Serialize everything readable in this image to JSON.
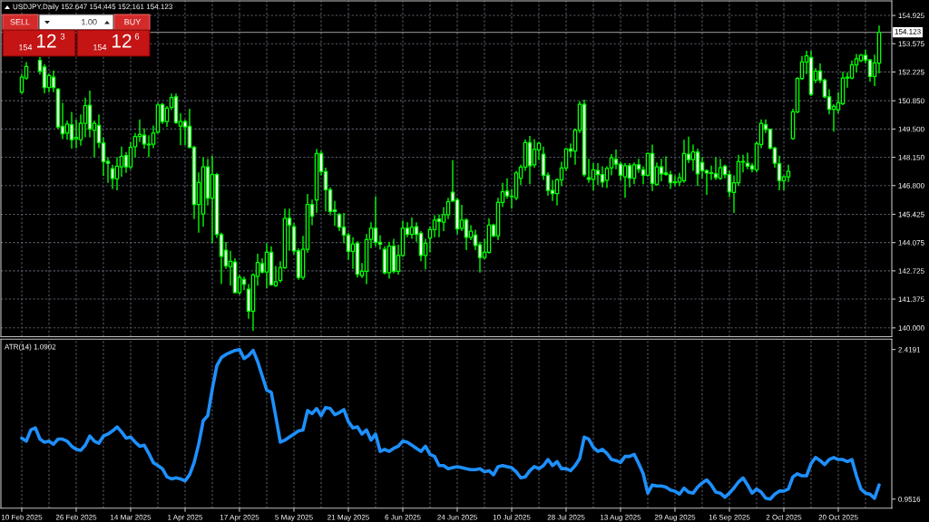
{
  "chart_data": [
    {
      "type": "candlestick",
      "title": "USDJPY,Daily 152.647 154.445 152.161 154.123",
      "categories": [
        null,
        null,
        null,
        null,
        null,
        null,
        null,
        null,
        null,
        null,
        null,
        null,
        null,
        null,
        null,
        null,
        null,
        null,
        null,
        null,
        null,
        null,
        null,
        null,
        null,
        null,
        null,
        null,
        null,
        null,
        null,
        null,
        null,
        null,
        null,
        null,
        null,
        null,
        null,
        null,
        null,
        null,
        null,
        null,
        null,
        null,
        null,
        null,
        null,
        null,
        null,
        null,
        null,
        null,
        null,
        null,
        null,
        null,
        null,
        null,
        null,
        null,
        null,
        null,
        null,
        null,
        null,
        null,
        null,
        null,
        null,
        null,
        null,
        null,
        null,
        null,
        null,
        null,
        null,
        null,
        null,
        null,
        null,
        null,
        null,
        null,
        null,
        null,
        null,
        null,
        null,
        null,
        null,
        null,
        null,
        null,
        null,
        null,
        null,
        null,
        null,
        null,
        null,
        null,
        null,
        null,
        null,
        null,
        null,
        null,
        null,
        null,
        null,
        null,
        null,
        null,
        null,
        null,
        null,
        null,
        null,
        null,
        null,
        null,
        null,
        null,
        null,
        null,
        null,
        null,
        null,
        null,
        null,
        null,
        null,
        null,
        null,
        null,
        null,
        null,
        null,
        null,
        null,
        null,
        null,
        null,
        null,
        null,
        null,
        null,
        null,
        null,
        null,
        null,
        null,
        null,
        null,
        null,
        null,
        null,
        null,
        null,
        null,
        null,
        null,
        null,
        null,
        null,
        null,
        null,
        null,
        null,
        null,
        null,
        null,
        null,
        null,
        null,
        null,
        null,
        null,
        null,
        null,
        null,
        null,
        null,
        null,
        null,
        null,
        null
      ],
      "ohlc": [
        [
          151.26,
          152.12,
          151.19,
          151.98
        ],
        [
          151.93,
          152.7,
          151.85,
          152.49
        ],
        null,
        null,
        [
          152.78,
          152.95,
          152.1,
          152.27
        ],
        [
          152.46,
          152.6,
          151.2,
          151.48
        ],
        [
          151.48,
          152.15,
          151.26,
          152.05
        ],
        [
          151.98,
          152.3,
          151.26,
          151.48
        ],
        [
          151.4,
          151.45,
          149.5,
          149.6
        ],
        [
          149.63,
          150.75,
          149.02,
          149.27
        ],
        [
          149.31,
          149.9,
          149.0,
          149.74
        ],
        [
          149.7,
          150.32,
          148.56,
          148.99
        ],
        [
          149.03,
          149.96,
          148.59,
          149.1
        ],
        [
          148.99,
          150.2,
          148.7,
          149.77
        ],
        [
          149.77,
          151.0,
          149.1,
          150.61
        ],
        [
          150.64,
          151.33,
          149.1,
          149.5
        ],
        [
          149.45,
          149.9,
          148.15,
          149.77
        ],
        [
          149.67,
          150.2,
          148.6,
          148.85
        ],
        [
          148.83,
          149.1,
          147.25,
          147.94
        ],
        [
          147.95,
          148.15,
          146.93,
          147.87
        ],
        [
          147.61,
          147.8,
          146.64,
          147.14
        ],
        [
          147.12,
          148.15,
          146.57,
          147.72
        ],
        [
          147.69,
          148.66,
          147.22,
          148.19
        ],
        [
          148.23,
          148.4,
          147.4,
          147.69
        ],
        [
          147.69,
          148.88,
          147.58,
          148.62
        ],
        [
          148.66,
          149.31,
          148.15,
          149.14
        ],
        [
          149.14,
          149.96,
          148.88,
          149.24
        ],
        [
          149.21,
          149.53,
          148.56,
          148.79
        ],
        [
          148.77,
          149.2,
          148.15,
          148.74
        ],
        [
          148.77,
          149.67,
          148.59,
          149.31
        ],
        [
          149.35,
          150.75,
          149.3,
          150.65
        ],
        [
          150.67,
          150.75,
          149.74,
          149.86
        ],
        [
          149.86,
          150.6,
          149.6,
          150.49
        ],
        [
          150.54,
          151.19,
          150.4,
          151.0
        ],
        [
          151.04,
          151.19,
          149.74,
          149.81
        ],
        [
          149.64,
          150.25,
          148.73,
          149.86
        ],
        [
          149.86,
          149.96,
          148.73,
          149.6
        ],
        [
          149.63,
          150.47,
          148.59,
          148.62
        ],
        [
          148.62,
          148.7,
          145.2,
          145.89
        ],
        [
          145.89,
          147.43,
          144.55,
          146.94
        ],
        [
          145.44,
          148.15,
          144.84,
          147.69
        ],
        [
          147.69,
          148.08,
          145.85,
          146.2
        ],
        [
          146.2,
          148.23,
          144.04,
          147.32
        ],
        [
          147.32,
          147.4,
          144.3,
          144.47
        ],
        [
          144.46,
          144.55,
          142.1,
          143.42
        ],
        [
          143.71,
          144.1,
          142.82,
          142.96
        ],
        [
          142.93,
          143.68,
          142.02,
          143.18
        ],
        [
          143.15,
          143.32,
          141.66,
          141.69
        ],
        [
          141.69,
          142.53,
          141.59,
          142.41
        ],
        [
          142.31,
          142.45,
          141.8,
          142.09
        ],
        [
          141.85,
          142.09,
          140.43,
          140.8
        ],
        [
          140.8,
          142.6,
          139.86,
          142.53
        ],
        [
          142.46,
          143.54,
          142.02,
          143.13
        ],
        [
          143.07,
          143.32,
          142.6,
          142.67
        ],
        [
          142.67,
          144.04,
          141.88,
          143.61
        ],
        [
          143.61,
          143.9,
          142.02,
          142.06
        ],
        [
          142.02,
          142.96,
          141.95,
          142.21
        ],
        [
          142.27,
          143.18,
          142.17,
          142.88
        ],
        [
          142.88,
          145.7,
          142.82,
          145.24
        ],
        [
          145.24,
          145.7,
          143.68,
          144.91
        ],
        [
          144.84,
          145.0,
          143.5,
          143.68
        ],
        [
          143.68,
          143.8,
          142.3,
          142.41
        ],
        [
          142.41,
          144.4,
          142.3,
          143.75
        ],
        [
          143.75,
          146.4,
          143.6,
          145.9
        ],
        [
          145.9,
          146.13,
          144.91,
          145.34
        ],
        [
          146.11,
          148.55,
          145.5,
          148.33
        ],
        [
          148.33,
          148.45,
          147.29,
          147.46
        ],
        [
          147.46,
          147.65,
          145.56,
          146.6
        ],
        [
          146.6,
          146.71,
          145.38,
          145.56
        ],
        [
          145.64,
          146.06,
          144.87,
          145.56
        ],
        [
          145.41,
          145.49,
          144.62,
          144.81
        ],
        [
          144.81,
          145.49,
          144.04,
          144.43
        ],
        [
          144.43,
          144.55,
          143.25,
          143.65
        ],
        [
          143.65,
          144.33,
          142.82,
          144.0
        ],
        [
          144.04,
          144.14,
          142.41,
          142.56
        ],
        [
          142.5,
          143.1,
          142.38,
          142.7
        ],
        [
          142.7,
          144.48,
          142.09,
          144.22
        ],
        [
          144.23,
          145.05,
          143.8,
          144.76
        ],
        [
          144.76,
          146.28,
          143.9,
          144.09
        ],
        [
          144.09,
          144.43,
          143.75,
          144.0
        ],
        [
          143.75,
          143.9,
          142.56,
          142.64
        ],
        [
          142.64,
          144.12,
          142.35,
          143.9
        ],
        [
          143.9,
          144.26,
          142.6,
          142.7
        ],
        [
          142.7,
          143.97,
          142.53,
          143.46
        ],
        [
          143.46,
          145.12,
          143.39,
          144.76
        ],
        [
          144.76,
          145.05,
          144.33,
          144.47
        ],
        [
          144.47,
          145.27,
          144.26,
          144.81
        ],
        [
          144.84,
          145.05,
          144.12,
          144.47
        ],
        [
          144.52,
          144.62,
          143.18,
          143.46
        ],
        [
          143.46,
          144.26,
          142.79,
          144.04
        ],
        [
          144.29,
          144.84,
          143.61,
          144.69
        ],
        [
          144.69,
          145.38,
          144.33,
          145.15
        ],
        [
          145.2,
          145.41,
          144.33,
          145.08
        ],
        [
          145.05,
          145.77,
          144.62,
          145.41
        ],
        [
          145.41,
          146.21,
          145.2,
          146.03
        ],
        [
          146.48,
          148.01,
          146.03,
          146.06
        ],
        [
          146.11,
          146.21,
          144.47,
          144.73
        ],
        [
          144.76,
          145.88,
          144.62,
          145.15
        ],
        [
          145.15,
          145.24,
          143.71,
          144.33
        ],
        [
          144.33,
          144.91,
          144.19,
          144.62
        ],
        [
          144.43,
          144.69,
          143.71,
          143.94
        ],
        [
          143.97,
          144.12,
          142.64,
          143.36
        ],
        [
          143.36,
          144.26,
          143.28,
          143.61
        ],
        [
          143.61,
          145.24,
          143.54,
          144.91
        ],
        [
          144.91,
          144.98,
          144.33,
          144.4
        ],
        [
          144.4,
          146.21,
          144.19,
          145.99
        ],
        [
          145.99,
          146.93,
          145.77,
          146.5
        ],
        [
          146.53,
          147.15,
          146.17,
          146.31
        ],
        [
          146.28,
          146.64,
          145.7,
          146.27
        ],
        [
          146.21,
          147.5,
          146.1,
          147.4
        ],
        [
          147.15,
          147.79,
          146.82,
          147.68
        ],
        [
          147.68,
          149.0,
          147.5,
          148.85
        ],
        [
          148.85,
          149.17,
          146.86,
          147.75
        ],
        [
          147.79,
          149.02,
          147.65,
          148.52
        ],
        [
          148.5,
          148.88,
          148.01,
          148.82
        ],
        [
          148.3,
          148.66,
          147.07,
          147.29
        ],
        [
          147.29,
          147.43,
          146.31,
          146.57
        ],
        [
          146.57,
          147.07,
          146.06,
          146.42
        ],
        [
          146.42,
          147.15,
          145.85,
          147.07
        ],
        [
          147.07,
          147.94,
          146.78,
          147.64
        ],
        [
          147.64,
          148.59,
          147.5,
          148.55
        ],
        [
          148.55,
          148.81,
          148.15,
          148.45
        ],
        [
          148.45,
          149.53,
          147.79,
          149.45
        ],
        [
          149.45,
          150.83,
          149.31,
          150.68
        ],
        [
          150.68,
          150.9,
          147.22,
          147.32
        ],
        [
          147.17,
          148.08,
          146.93,
          147.1
        ],
        [
          147.1,
          147.87,
          146.57,
          147.55
        ],
        [
          147.52,
          147.87,
          146.83,
          147.32
        ],
        [
          147.32,
          147.72,
          146.71,
          146.97
        ],
        [
          147.05,
          147.72,
          146.68,
          147.62
        ],
        [
          147.65,
          148.3,
          147.29,
          148.13
        ],
        [
          148.05,
          148.52,
          147.58,
          147.82
        ],
        [
          147.82,
          147.94,
          147.03,
          147.29
        ],
        [
          147.22,
          147.87,
          146.21,
          147.75
        ],
        [
          147.75,
          147.87,
          146.71,
          147.15
        ],
        [
          147.15,
          147.9,
          146.86,
          147.79
        ],
        [
          147.79,
          148.08,
          147.4,
          147.58
        ],
        [
          147.55,
          147.72,
          146.86,
          147.29
        ],
        [
          147.29,
          148.37,
          147.22,
          148.33
        ],
        [
          148.33,
          148.76,
          146.54,
          146.9
        ],
        [
          146.86,
          147.9,
          146.78,
          147.69
        ],
        [
          147.69,
          148.08,
          147.0,
          147.36
        ],
        [
          147.4,
          148.19,
          147.26,
          147.33
        ],
        [
          147.32,
          147.5,
          146.64,
          146.93
        ],
        [
          146.93,
          147.29,
          146.78,
          146.98
        ],
        [
          146.97,
          147.4,
          146.78,
          147.17
        ],
        [
          147.03,
          148.99,
          146.93,
          148.33
        ],
        [
          148.3,
          149.14,
          147.87,
          148.04
        ],
        [
          148.04,
          148.76,
          147.5,
          148.41
        ],
        [
          148.4,
          148.56,
          146.78,
          147.36
        ],
        [
          147.9,
          148.15,
          147.15,
          147.51
        ],
        [
          147.51,
          147.58,
          146.35,
          147.4
        ],
        [
          147.41,
          147.75,
          147.07,
          147.38
        ],
        [
          147.36,
          148.15,
          147.07,
          147.18
        ],
        [
          147.15,
          148.08,
          147.07,
          147.65
        ],
        [
          147.72,
          147.79,
          147.15,
          147.32
        ],
        [
          147.32,
          147.5,
          146.25,
          146.5
        ],
        [
          146.47,
          147.29,
          145.49,
          146.93
        ],
        [
          146.93,
          148.27,
          146.78,
          147.94
        ],
        [
          147.92,
          148.27,
          147.43,
          147.95
        ],
        [
          147.87,
          148.37,
          147.58,
          147.72
        ],
        [
          147.75,
          147.87,
          147.43,
          147.58
        ],
        [
          147.55,
          148.91,
          147.43,
          148.8
        ],
        [
          148.76,
          149.96,
          148.59,
          149.77
        ],
        [
          149.71,
          149.96,
          149.31,
          149.48
        ],
        [
          149.48,
          149.53,
          148.52,
          148.59
        ],
        [
          148.59,
          148.66,
          147.65,
          147.87
        ],
        [
          147.84,
          148.23,
          146.57,
          147.04
        ],
        [
          147.03,
          147.29,
          146.57,
          147.22
        ],
        [
          147.22,
          147.79,
          146.97,
          147.48
        ],
        [
          149.05,
          150.47,
          148.99,
          150.32
        ],
        [
          150.32,
          151.98,
          150.25,
          151.91
        ],
        [
          151.91,
          152.99,
          151.84,
          152.7
        ],
        [
          152.7,
          153.24,
          152.12,
          152.99
        ],
        [
          152.92,
          153.24,
          151.07,
          151.16
        ],
        [
          151.84,
          152.41,
          151.69,
          152.26
        ],
        [
          152.27,
          152.63,
          151.69,
          151.84
        ],
        [
          151.84,
          151.91,
          150.97,
          151.04
        ],
        [
          151.04,
          151.4,
          150.2,
          150.44
        ],
        [
          150.44,
          150.68,
          149.38,
          150.58
        ],
        [
          150.42,
          151.26,
          150.25,
          150.75
        ],
        [
          150.71,
          152.23,
          150.64,
          151.94
        ],
        [
          151.94,
          152.2,
          151.48,
          151.98
        ],
        [
          151.94,
          152.77,
          151.88,
          152.56
        ],
        [
          152.56,
          153.09,
          152.2,
          152.85
        ],
        [
          152.77,
          153.09,
          152.7,
          153.03
        ],
        [
          153.02,
          153.28,
          152.63,
          152.8
        ],
        [
          152.8,
          152.85,
          151.76,
          152.01
        ],
        [
          152.01,
          153.06,
          151.55,
          152.66
        ],
        [
          152.647,
          154.445,
          152.161,
          154.123
        ]
      ],
      "color": "#00ff00",
      "colors": [
        "#00ff00",
        "#00ff00",
        null,
        null,
        "#ffffff",
        "#ffffff",
        "#00ff00",
        "#ffffff",
        "#ffffff",
        "#ffffff",
        "#00ff00",
        "#ffffff",
        "#00ff00",
        "#00ff00",
        "#00ff00",
        "#ffffff",
        "#00ff00",
        "#ffffff",
        "#ffffff",
        "#ffffff",
        "#ffffff",
        "#00ff00",
        "#00ff00",
        "#ffffff",
        "#00ff00",
        "#00ff00",
        "#00ff00",
        "#ffffff",
        "#ffffff",
        "#00ff00",
        "#00ff00",
        "#ffffff",
        "#00ff00",
        "#00ff00",
        "#ffffff",
        "#00ff00",
        "#ffffff",
        "#ffffff",
        "#ffffff",
        "#00ff00",
        "#00ff00",
        "#ffffff",
        "#00ff00",
        "#ffffff",
        "#ffffff",
        "#ffffff",
        "#00ff00",
        "#ffffff",
        "#00ff00",
        "#ffffff",
        "#ffffff",
        "#00ff00",
        "#00ff00",
        "#ffffff",
        "#00ff00",
        "#ffffff",
        "#00ff00",
        "#00ff00",
        "#00ff00",
        "#ffffff",
        "#ffffff",
        "#ffffff",
        "#00ff00",
        "#00ff00",
        "#ffffff",
        "#00ff00",
        "#ffffff",
        "#ffffff",
        "#ffffff",
        "#ffffff",
        "#ffffff",
        "#ffffff",
        "#ffffff",
        "#00ff00",
        "#ffffff",
        "#00ff00",
        "#00ff00",
        "#00ff00",
        "#ffffff",
        "#ffffff",
        "#ffffff",
        "#00ff00",
        "#ffffff",
        "#00ff00",
        "#00ff00",
        "#ffffff",
        "#00ff00",
        "#ffffff",
        "#ffffff",
        "#00ff00",
        "#00ff00",
        "#00ff00",
        "#ffffff",
        "#00ff00",
        "#00ff00",
        "#ffffff",
        "#ffffff",
        "#00ff00",
        "#ffffff",
        "#00ff00",
        "#ffffff",
        "#ffffff",
        "#00ff00",
        "#00ff00",
        "#ffffff",
        "#00ff00",
        "#00ff00",
        "#ffffff",
        "#ffffff",
        "#00ff00",
        "#00ff00",
        "#00ff00",
        "#ffffff",
        "#00ff00",
        "#00ff00",
        "#ffffff",
        "#ffffff",
        "#ffffff",
        "#00ff00",
        "#00ff00",
        "#00ff00",
        "#ffffff",
        "#00ff00",
        "#00ff00",
        "#ffffff",
        "#ffffff",
        "#00ff00",
        "#ffffff",
        "#ffffff",
        "#00ff00",
        "#00ff00",
        "#ffffff",
        "#ffffff",
        "#00ff00",
        "#ffffff",
        "#00ff00",
        "#ffffff",
        "#ffffff",
        "#00ff00",
        "#ffffff",
        "#00ff00",
        "#ffffff",
        "#ffffff",
        "#ffffff",
        "#00ff00",
        "#00ff00",
        "#00ff00",
        "#ffffff",
        "#00ff00",
        "#ffffff",
        "#ffffff",
        "#ffffff",
        "#ffffff",
        "#ffffff",
        "#00ff00",
        "#ffffff",
        "#ffffff",
        "#00ff00",
        "#00ff00",
        "#00ff00",
        "#ffffff",
        "#ffffff",
        "#00ff00",
        "#00ff00",
        "#ffffff",
        "#ffffff",
        "#ffffff",
        "#ffffff",
        "#00ff00",
        "#00ff00",
        "#00ff00",
        "#00ff00",
        "#00ff00",
        "#00ff00",
        "#ffffff",
        "#00ff00",
        "#ffffff",
        "#ffffff",
        "#ffffff",
        "#00ff00",
        "#00ff00",
        "#00ff00",
        "#00ff00",
        "#00ff00",
        "#00ff00",
        "#00ff00",
        "#ffffff",
        "#ffffff",
        "#00ff00",
        "#00ff00"
      ],
      "ylim": [
        139.58,
        155.62
      ],
      "yticks": [
        154.925,
        153.575,
        152.225,
        {
          "value": 150.85,
          "label": "150.850"
        },
        {
          "value": 149.5,
          "label": "149.500"
        },
        {
          "value": 148.15,
          "label": "148.150"
        },
        {
          "value": 146.8,
          "label": "146.800"
        },
        145.425,
        144.075,
        142.725,
        141.375,
        {
          "value": 140.0,
          "label": "140.000"
        }
      ],
      "grid": true,
      "tick_labels": "y",
      "ref_lines": [
        {
          "axis": "y",
          "value": 154.123,
          "label": "154.123",
          "color": "#808080"
        }
      ],
      "annotations": [
        "SELL",
        "1.00",
        "BUY",
        "154",
        "12",
        "3",
        "154",
        "12",
        "6"
      ]
    },
    {
      "type": "line",
      "title": "ATR(14) 1.0902",
      "categories": [
        "10 Feb 2025",
        null,
        null,
        null,
        null,
        null,
        null,
        null,
        null,
        null,
        null,
        null,
        "26 Feb 2025",
        null,
        null,
        null,
        null,
        null,
        null,
        null,
        null,
        null,
        null,
        null,
        "14 Mar 2025",
        null,
        null,
        null,
        null,
        null,
        null,
        null,
        null,
        null,
        null,
        null,
        "1 Apr 2025",
        null,
        null,
        null,
        null,
        null,
        null,
        null,
        null,
        null,
        null,
        null,
        "17 Apr 2025",
        null,
        null,
        null,
        null,
        null,
        null,
        null,
        null,
        null,
        null,
        null,
        "5 May 2025",
        null,
        null,
        null,
        null,
        null,
        null,
        null,
        null,
        null,
        null,
        null,
        "21 May 2025",
        null,
        null,
        null,
        null,
        null,
        null,
        null,
        null,
        null,
        null,
        null,
        "6 Jun 2025",
        null,
        null,
        null,
        null,
        null,
        null,
        null,
        null,
        null,
        null,
        null,
        "24 Jun 2025",
        null,
        null,
        null,
        null,
        null,
        null,
        null,
        null,
        null,
        null,
        null,
        "10 Jul 2025",
        null,
        null,
        null,
        null,
        null,
        null,
        null,
        null,
        null,
        null,
        null,
        "28 Jul 2025",
        null,
        null,
        null,
        null,
        null,
        null,
        null,
        null,
        null,
        null,
        null,
        "13 Aug 2025",
        null,
        null,
        null,
        null,
        null,
        null,
        null,
        null,
        null,
        null,
        null,
        "29 Aug 2025",
        null,
        null,
        null,
        null,
        null,
        null,
        null,
        null,
        null,
        null,
        null,
        "16 Sep 2025",
        null,
        null,
        null,
        null,
        null,
        null,
        null,
        null,
        null,
        null,
        null,
        "2 Oct 2025",
        null,
        null,
        null,
        null,
        null,
        null,
        null,
        null,
        null,
        null,
        null,
        "20 Oct 2025",
        null,
        null,
        null,
        null,
        null,
        null,
        null,
        null,
        null
      ],
      "series": [
        {
          "color": "#1e90ff",
          "values": [
            1.55,
            1.52,
            1.63,
            1.65,
            1.54,
            1.51,
            1.52,
            1.49,
            1.54,
            1.54,
            1.52,
            1.47,
            1.44,
            1.43,
            1.48,
            1.57,
            1.52,
            1.5,
            1.57,
            1.59,
            1.62,
            1.66,
            1.61,
            1.55,
            1.56,
            1.51,
            1.47,
            1.48,
            1.4,
            1.31,
            1.28,
            1.25,
            1.17,
            1.15,
            1.16,
            1.15,
            1.13,
            1.19,
            1.31,
            1.49,
            1.72,
            1.77,
            2.03,
            2.26,
            2.34,
            2.37,
            2.39,
            2.41,
            2.4191,
            2.33,
            2.36,
            2.41,
            2.3,
            2.16,
            2.02,
            2.0,
            1.76,
            1.51,
            1.53,
            1.56,
            1.59,
            1.62,
            1.63,
            1.82,
            1.79,
            1.84,
            1.77,
            1.85,
            1.84,
            1.78,
            1.8,
            1.83,
            1.71,
            1.65,
            1.66,
            1.59,
            1.63,
            1.53,
            1.59,
            1.42,
            1.44,
            1.42,
            1.45,
            1.47,
            1.52,
            1.51,
            1.48,
            1.45,
            1.42,
            1.47,
            1.39,
            1.37,
            1.28,
            1.28,
            1.25,
            1.26,
            1.27,
            1.26,
            1.25,
            1.24,
            1.24,
            1.25,
            1.22,
            1.23,
            1.19,
            1.27,
            1.28,
            1.27,
            1.26,
            1.22,
            1.16,
            1.17,
            1.23,
            1.27,
            1.25,
            1.28,
            1.34,
            1.28,
            1.32,
            1.25,
            1.25,
            1.23,
            1.28,
            1.35,
            1.56,
            1.54,
            1.46,
            1.42,
            1.44,
            1.4,
            1.34,
            1.33,
            1.31,
            1.37,
            1.37,
            1.39,
            1.3,
            1.2,
            1.01,
            1.09,
            1.08,
            1.08,
            1.07,
            1.04,
            1.03,
            1.0,
            1.06,
            1.02,
            1.01,
            1.07,
            1.11,
            1.14,
            1.09,
            1.02,
            1.01,
            0.97,
            1.01,
            1.06,
            1.12,
            1.16,
            1.09,
            1.01,
            1.05,
            1.02,
            0.96,
            0.9516,
            1.0,
            1.03,
            1.03,
            1.05,
            1.17,
            1.2,
            1.18,
            1.18,
            1.3,
            1.36,
            1.33,
            1.29,
            1.34,
            1.36,
            1.34,
            1.34,
            1.32,
            1.34,
            1.18,
            1.05,
            1.01,
            1.0,
            0.96,
            1.0902
          ]
        }
      ],
      "ylim": [
        0.863,
        2.52
      ],
      "yticks": [
        2.4191,
        0.9516
      ],
      "grid": "x"
    }
  ]
}
